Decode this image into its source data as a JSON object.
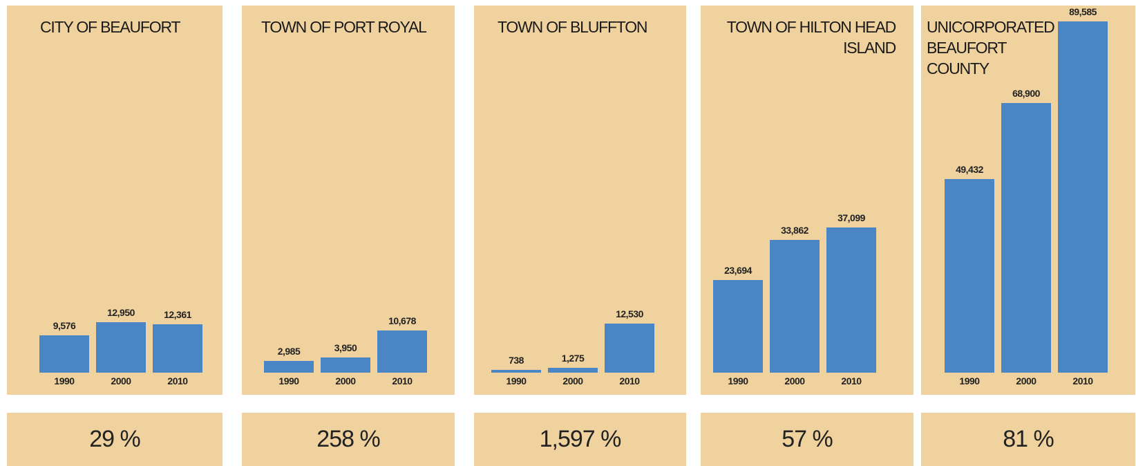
{
  "chart_data": [
    {
      "type": "bar",
      "title": "CITY OF BEAUFORT",
      "categories": [
        "1990",
        "2000",
        "2010"
      ],
      "values": [
        9576,
        12950,
        12361
      ],
      "value_labels": [
        "9,576",
        "12,950",
        "12,361"
      ],
      "color": "#4a86c5",
      "ylim": [
        0,
        90000
      ],
      "change": "29 %"
    },
    {
      "type": "bar",
      "title": "TOWN OF PORT ROYAL",
      "categories": [
        "1990",
        "2000",
        "2010"
      ],
      "values": [
        2985,
        3950,
        10678
      ],
      "value_labels": [
        "2,985",
        "3,950",
        "10,678"
      ],
      "color": "#4a86c5",
      "ylim": [
        0,
        90000
      ],
      "change": "258 %"
    },
    {
      "type": "bar",
      "title": "TOWN OF BLUFFTON",
      "categories": [
        "1990",
        "2000",
        "2010"
      ],
      "values": [
        738,
        1275,
        12530
      ],
      "value_labels": [
        "738",
        "1,275",
        "12,530"
      ],
      "color": "#4a86c5",
      "ylim": [
        0,
        90000
      ],
      "change": "1,597 %"
    },
    {
      "type": "bar",
      "title": "TOWN OF HILTON HEAD ISLAND",
      "categories": [
        "1990",
        "2000",
        "2010"
      ],
      "values": [
        23694,
        33862,
        37099
      ],
      "value_labels": [
        "23,694",
        "33,862",
        "37,099"
      ],
      "color": "#4a86c5",
      "ylim": [
        0,
        90000
      ],
      "change": "57 %"
    },
    {
      "type": "bar",
      "title": "UNICORPORATED BEAUFORT COUNTY",
      "categories": [
        "1990",
        "2000",
        "2010"
      ],
      "values": [
        49432,
        68900,
        89585
      ],
      "value_labels": [
        "49,432",
        "68,900",
        "89,585"
      ],
      "color": "#4a86c5",
      "ylim": [
        0,
        90000
      ],
      "change": "81 %"
    }
  ]
}
